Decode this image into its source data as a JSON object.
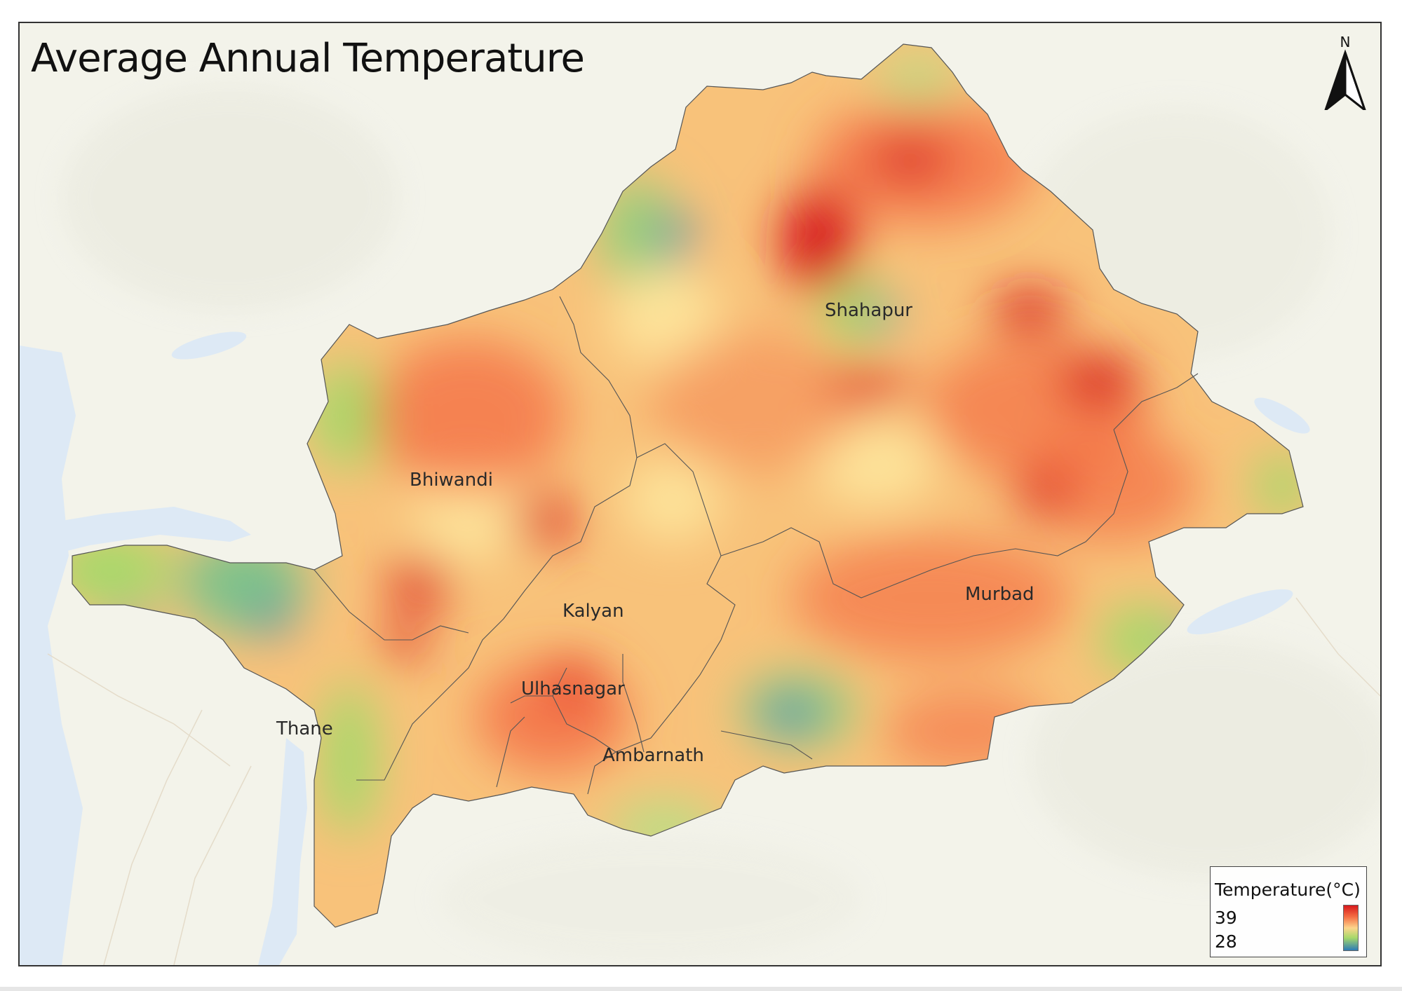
{
  "title": "Average Annual Temperature",
  "north_label": "N",
  "places": [
    {
      "name": "Shahapur"
    },
    {
      "name": "Bhiwandi"
    },
    {
      "name": "Murbad"
    },
    {
      "name": "Kalyan"
    },
    {
      "name": "Ulhasnagar"
    },
    {
      "name": "Thane"
    },
    {
      "name": "Ambarnath"
    }
  ],
  "legend": {
    "title": "Temperature(°C)",
    "max_label": "39",
    "min_label": "28",
    "max_value": 39,
    "min_value": 28,
    "ramp_colors": [
      "#d7191c",
      "#f46d43",
      "#fdd58c",
      "#a6d96a",
      "#2c7bb6"
    ]
  },
  "colors": {
    "basemap_land": "#f3f3ea",
    "water": "#dde9f5",
    "hot": "#d7191c",
    "warm": "#f46d43",
    "mild": "#fdd58c",
    "cool": "#a6d96a",
    "cold": "#2c7bb6"
  }
}
